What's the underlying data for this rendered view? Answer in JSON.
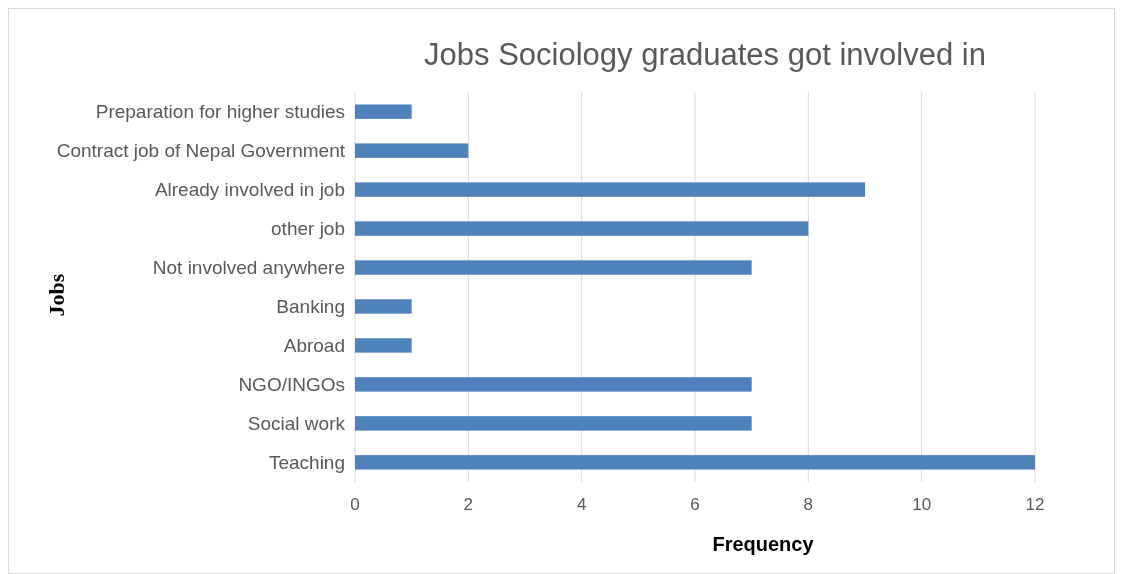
{
  "chart_data": {
    "type": "bar",
    "orientation": "horizontal",
    "title": "Jobs Sociology graduates got involved in",
    "xlabel": "Frequency",
    "ylabel": "Jobs",
    "categories": [
      "Preparation for higher studies",
      "Contract job of Nepal Government",
      "Already involved in job",
      "other job",
      "Not involved anywhere",
      "Banking",
      "Abroad",
      "NGO/INGOs",
      "Social work",
      "Teaching"
    ],
    "values": [
      1,
      2,
      9,
      8,
      7,
      1,
      1,
      7,
      7,
      12
    ],
    "color": "#4f81bd",
    "xlim": [
      0,
      12
    ],
    "xticks": [
      0,
      2,
      4,
      6,
      8,
      10,
      12
    ],
    "grid": "x"
  }
}
